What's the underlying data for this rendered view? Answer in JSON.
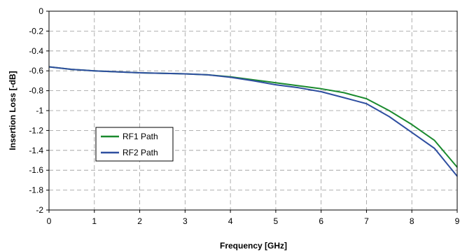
{
  "chart_data": {
    "type": "line",
    "xlabel": "Frequency [GHz]",
    "ylabel": "Insertion Loss [-dB]",
    "xlim": [
      0,
      9
    ],
    "ylim": [
      -2,
      0
    ],
    "x_ticks": [
      "0",
      "1",
      "2",
      "3",
      "4",
      "5",
      "6",
      "7",
      "8",
      "9"
    ],
    "y_ticks": [
      "0",
      "-0.2",
      "-0.4",
      "-0.6",
      "-0.8",
      "-1",
      "-1.2",
      "-1.4",
      "-1.6",
      "-1.8",
      "-2"
    ],
    "grid": true,
    "legend_position": "left-middle",
    "series": [
      {
        "name": "RF1 Path",
        "color": "#1a8a2e",
        "x": [
          0,
          0.5,
          1,
          1.5,
          2,
          2.5,
          3,
          3.5,
          4,
          4.5,
          5,
          5.5,
          6,
          6.5,
          7,
          7.5,
          8,
          8.5,
          9
        ],
        "y": [
          -0.56,
          -0.585,
          -0.6,
          -0.61,
          -0.62,
          -0.625,
          -0.63,
          -0.64,
          -0.66,
          -0.69,
          -0.72,
          -0.75,
          -0.78,
          -0.82,
          -0.88,
          -1.0,
          -1.14,
          -1.3,
          -1.57
        ]
      },
      {
        "name": "RF2 Path",
        "color": "#2f4fa0",
        "x": [
          0,
          0.5,
          1,
          1.5,
          2,
          2.5,
          3,
          3.5,
          4,
          4.5,
          5,
          5.5,
          6,
          6.5,
          7,
          7.5,
          8,
          8.5,
          9
        ],
        "y": [
          -0.56,
          -0.585,
          -0.6,
          -0.61,
          -0.62,
          -0.625,
          -0.63,
          -0.64,
          -0.665,
          -0.7,
          -0.74,
          -0.77,
          -0.81,
          -0.87,
          -0.93,
          -1.06,
          -1.22,
          -1.38,
          -1.66
        ]
      }
    ]
  }
}
